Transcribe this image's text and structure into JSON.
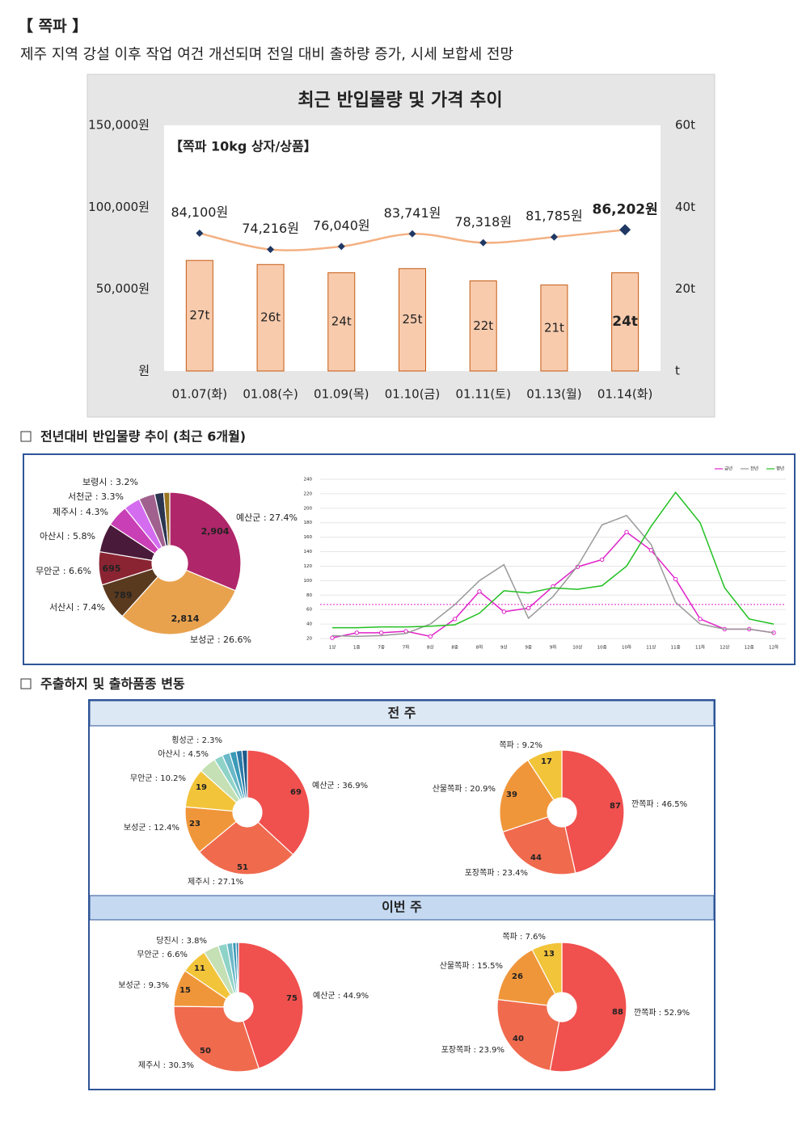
{
  "header": {
    "title": "【 쪽파 】",
    "subtitle": "제주 지역 강설 이후 작업 여건 개선되며 전일 대비 출하량 증가, 시세 보합세 전망"
  },
  "sections": [
    "전년대비 반입물량 추이 (최근 6개월)",
    "주출하지 및 출하품종 변동"
  ],
  "table": {
    "headers": [
      "전 주",
      "이번 주"
    ]
  },
  "chart_data": [
    {
      "type": "combo",
      "title": "최근 반입물량 및 가격 추이",
      "subtitle": "【쪽파 10kg 상자/상품】",
      "categories": [
        "01.07(화)",
        "01.08(수)",
        "01.09(목)",
        "01.10(금)",
        "01.11(토)",
        "01.13(월)",
        "01.14(화)"
      ],
      "series": [
        {
          "type": "bar",
          "axis": "y2",
          "color": "#f8cbad",
          "values": [
            27,
            26,
            24,
            25,
            22,
            21,
            24
          ],
          "value_labels": [
            "27t",
            "26t",
            "24t",
            "25t",
            "22t",
            "21t",
            "24t"
          ]
        },
        {
          "type": "line",
          "color": "#f4b183",
          "marker_color": "#1f3864",
          "values": [
            84100,
            74216,
            76040,
            83741,
            78318,
            81785,
            86202
          ],
          "value_labels": [
            "84,100원",
            "74,216원",
            "76,040원",
            "83,741원",
            "78,318원",
            "81,785원",
            "86,202원"
          ]
        }
      ],
      "bold_last": true,
      "ylim": [
        0,
        150000
      ],
      "yticks": [
        {
          "value": 0,
          "label": "원"
        },
        {
          "value": 50000,
          "label": "50,000원"
        },
        {
          "value": 100000,
          "label": "100,000원"
        },
        {
          "value": 150000,
          "label": "150,000원"
        }
      ],
      "y2lim": [
        0,
        60
      ],
      "y2ticks": [
        {
          "value": 0,
          "label": "t"
        },
        {
          "value": 20,
          "label": "20t"
        },
        {
          "value": 40,
          "label": "40t"
        },
        {
          "value": 60,
          "label": "60t"
        }
      ]
    },
    {
      "type": "donut",
      "values": [
        27.4,
        26.6,
        7.4,
        6.6,
        5.8,
        4.3,
        3.3,
        3.2,
        1.8,
        1.2
      ],
      "value_labels": [
        "예산군 : 27.4%",
        "보성군 : 26.6%",
        "서산시 : 7.4%",
        "무안군 : 6.6%",
        "아산시 : 5.8%",
        "제주시 : 4.3%",
        "서천군 : 3.3%",
        "보령시 : 3.2%",
        null,
        null
      ],
      "counts": [
        2904,
        2814,
        789,
        695,
        null,
        null,
        null,
        null,
        null,
        null
      ],
      "count_labels": [
        "2,904",
        "2,814",
        "789",
        "695",
        null,
        null,
        null,
        null,
        null,
        null
      ],
      "colors": [
        "#b0266a",
        "#e8a24e",
        "#5a3a1f",
        "#8a2433",
        "#4a1a3a",
        "#c93fb5",
        "#d46cf0",
        "#a0618f",
        "#2b3550",
        "#9a7520"
      ]
    },
    {
      "type": "line",
      "categories": [
        "1상",
        "1중",
        "7중",
        "7하",
        "8상",
        "8중",
        "8하",
        "9상",
        "9중",
        "9하",
        "10상",
        "10중",
        "10하",
        "11상",
        "11중",
        "11하",
        "12상",
        "12중",
        "12하"
      ],
      "series": [
        {
          "name": "금년",
          "color": "#e020c8",
          "marker": true,
          "values": [
            21,
            28,
            28,
            30,
            23,
            47,
            85,
            57,
            62,
            92,
            119,
            129,
            167,
            142,
            102,
            47,
            33,
            33,
            28
          ]
        },
        {
          "name": "전년",
          "color": "#999999",
          "values": [
            24,
            23,
            24,
            27,
            40,
            67,
            100,
            122,
            48,
            78,
            120,
            177,
            190,
            150,
            70,
            40,
            33,
            33,
            28
          ]
        },
        {
          "name": "평년",
          "color": "#22c022",
          "values": [
            35,
            35,
            36,
            36,
            37,
            39,
            55,
            86,
            83,
            90,
            88,
            93,
            120,
            175,
            222,
            180,
            90,
            47,
            40
          ]
        }
      ],
      "hline": 67,
      "ylim": [
        20,
        240
      ],
      "yticks": [
        20,
        40,
        60,
        80,
        100,
        120,
        140,
        160,
        180,
        200,
        220,
        240
      ],
      "grid": true,
      "legend": "top-right"
    },
    {
      "type": "donut",
      "values": [
        36.9,
        27.1,
        12.4,
        10.2,
        4.5,
        2.3,
        2.0,
        1.7,
        1.5,
        1.4
      ],
      "value_labels": [
        "예산군 : 36.9%",
        "제주시 : 27.1%",
        "보성군 : 12.4%",
        "무안군 : 10.2%",
        "아산시 : 4.5%",
        "횡성군 : 2.3%",
        null,
        null,
        null,
        null
      ],
      "counts": [
        69,
        51,
        23,
        19,
        null,
        null,
        null,
        null,
        null,
        null
      ],
      "colors": [
        "#f0504e",
        "#f06a4e",
        "#f0963a",
        "#f2c43a",
        "#c5e0b4",
        "#8fd3c8",
        "#6ab8c8",
        "#3a9ab8",
        "#2a7aa8",
        "#1e5a8a"
      ]
    },
    {
      "type": "donut",
      "values": [
        46.5,
        23.4,
        20.9,
        9.2
      ],
      "value_labels": [
        "깐쪽파 : 46.5%",
        "포장쪽파 : 23.4%",
        "산물쪽파 : 20.9%",
        "쪽파 : 9.2%"
      ],
      "counts": [
        87,
        44,
        39,
        17
      ],
      "colors": [
        "#f0504e",
        "#f06a4e",
        "#f0963a",
        "#f2c43a"
      ]
    },
    {
      "type": "donut",
      "values": [
        44.9,
        30.3,
        9.3,
        6.6,
        3.8,
        2.2,
        1.4,
        0.9,
        0.6
      ],
      "value_labels": [
        "예산군 : 44.9%",
        "제주시 : 30.3%",
        "보성군 : 9.3%",
        "무안군 : 6.6%",
        "당진시 : 3.8%",
        null,
        null,
        null,
        null
      ],
      "counts": [
        75,
        50,
        15,
        11,
        null,
        null,
        null,
        null,
        null
      ],
      "colors": [
        "#f0504e",
        "#f06a4e",
        "#f0963a",
        "#f2c43a",
        "#c5e0b4",
        "#8fd3c8",
        "#6ab8c8",
        "#3a9ab8",
        "#2a7aa8"
      ]
    },
    {
      "type": "donut",
      "values": [
        52.9,
        23.9,
        15.5,
        7.6
      ],
      "value_labels": [
        "깐쪽파 : 52.9%",
        "포장쪽파 : 23.9%",
        "산물쪽파 : 15.5%",
        "쪽파 : 7.6%"
      ],
      "counts": [
        88,
        40,
        26,
        13
      ],
      "colors": [
        "#f0504e",
        "#f06a4e",
        "#f0963a",
        "#f2c43a"
      ]
    }
  ]
}
